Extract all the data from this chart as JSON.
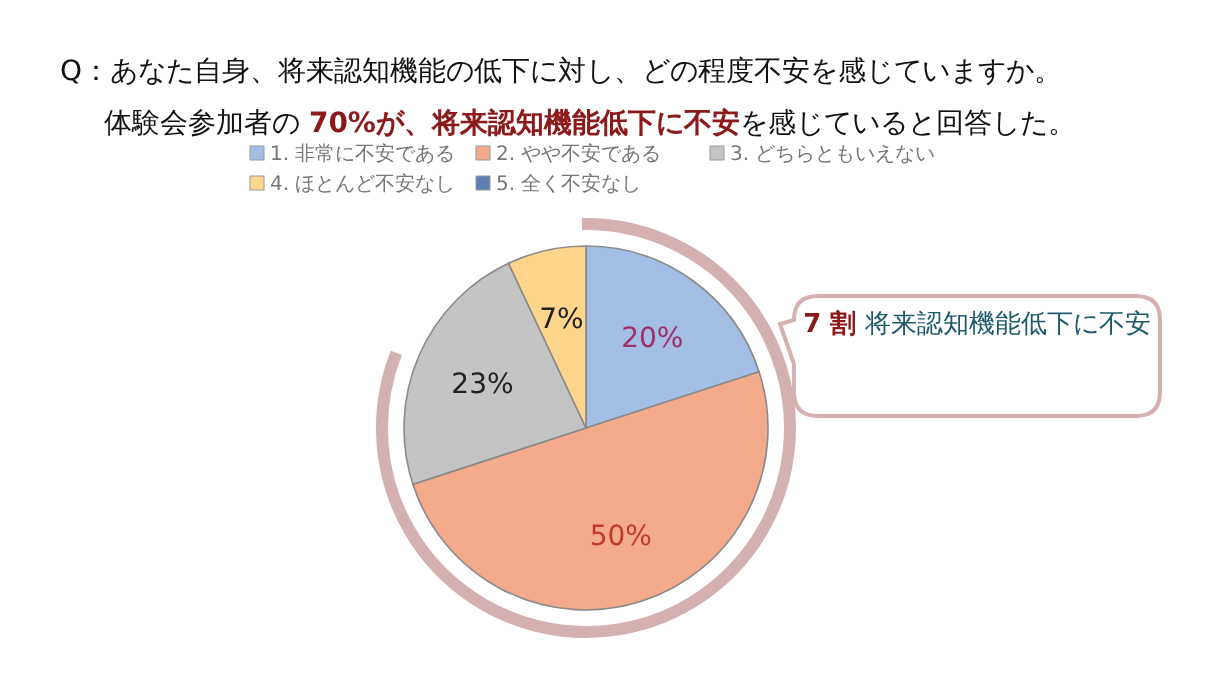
{
  "chart_data": {
    "type": "pie",
    "title": "Q：あなた自身、将来認知機能の低下に対し、どの程度不安を感じていますか。",
    "subtitle": "体験会参加者の **70%が、将来認知機能低下に不安**を感じていると回答した。",
    "categories": [
      "1. 非常に不安である",
      "2. やや不安である",
      "3. どちらともいえない",
      "4. ほとんど不安なし",
      "5. 全く不安なし"
    ],
    "values": [
      20,
      50,
      23,
      7,
      0
    ],
    "colors": [
      "#a3bfe6",
      "#f3ab8c",
      "#c4c4c4",
      "#fdd68c",
      "#5f7fb3"
    ],
    "value_labels": [
      "20%",
      "50%",
      "23%",
      "7%",
      null
    ],
    "legend": "top",
    "annotations": [
      "**7 割** 将来認知機能低下に不安"
    ]
  }
}
